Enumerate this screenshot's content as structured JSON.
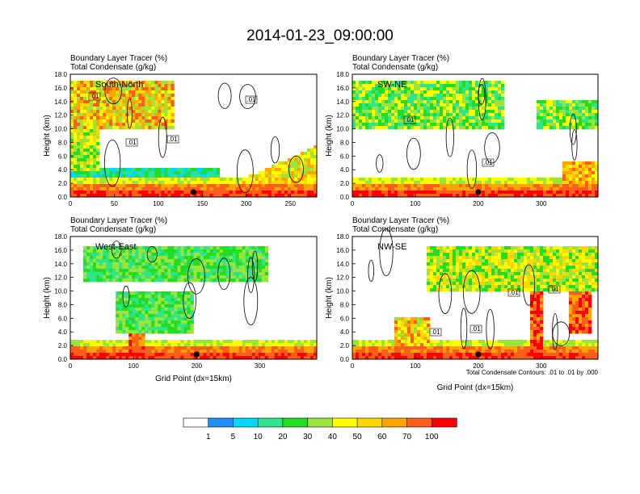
{
  "figure_title": "2014-01-23_09:00:00",
  "colors": {
    "levels": [
      "#ffffff",
      "#1e90ff",
      "#00d8ff",
      "#2ee58c",
      "#22dd22",
      "#9be53a",
      "#ffff00",
      "#ffd700",
      "#ffa500",
      "#ff5e1a",
      "#ff0000"
    ],
    "contour": "#000000"
  },
  "colorbar": {
    "labels": [
      "1",
      "5",
      "10",
      "20",
      "30",
      "40",
      "50",
      "60",
      "70",
      "100"
    ]
  },
  "chart_data": [
    {
      "type": "heatmap",
      "panel_label": "South-North",
      "subtitle_line1": "Boundary Layer Tracer   (%)",
      "subtitle_line2": "Total Condensate   (g/kg)",
      "ylabel": "Height (km)",
      "xlabel": "",
      "xlim": [
        0,
        280
      ],
      "ylim": [
        0,
        18
      ],
      "x_ticks": [
        "0",
        "50",
        "100",
        "150",
        "200",
        "250"
      ],
      "y_ticks": [
        "0.0",
        "2.0",
        "4.0",
        "6.0",
        "8.0",
        "10.0",
        "12.0",
        "14.0",
        "16.0",
        "18.0"
      ],
      "contour_labels": [
        ".01",
        ".01",
        ".01",
        ".01"
      ],
      "marker_x": 140,
      "note": ""
    },
    {
      "type": "heatmap",
      "panel_label": "SW-NE",
      "subtitle_line1": "Boundary Layer Tracer   (%)",
      "subtitle_line2": "Total Condensate   (g/kg)",
      "ylabel": "Height (km)",
      "xlabel": "",
      "xlim": [
        0,
        390
      ],
      "ylim": [
        0,
        18
      ],
      "x_ticks": [
        "0",
        "100",
        "200",
        "300"
      ],
      "y_ticks": [
        "0.0",
        "2.0",
        "4.0",
        "6.0",
        "8.0",
        "10.0",
        "12.0",
        "14.0",
        "16.0",
        "18.0"
      ],
      "contour_labels": [
        ".01",
        ".01"
      ],
      "marker_x": 200,
      "note": ""
    },
    {
      "type": "heatmap",
      "panel_label": "West-East",
      "subtitle_line1": "Boundary Layer Tracer   (%)",
      "subtitle_line2": "Total Condensate   (g/kg)",
      "ylabel": "Height (km)",
      "xlabel": "Grid Point (dx=15km)",
      "xlim": [
        0,
        390
      ],
      "ylim": [
        0,
        18
      ],
      "x_ticks": [
        "0",
        "100",
        "200",
        "300"
      ],
      "y_ticks": [
        "0.0",
        "2.0",
        "4.0",
        "6.0",
        "8.0",
        "10.0",
        "12.0",
        "14.0",
        "16.0",
        "18.0"
      ],
      "contour_labels": [],
      "marker_x": 200,
      "note": ""
    },
    {
      "type": "heatmap",
      "panel_label": "NW-SE",
      "subtitle_line1": "Boundary Layer Tracer   (%)",
      "subtitle_line2": "Total Condensate   (g/kg)",
      "ylabel": "Height (km)",
      "xlabel": "Grid Point (dx=15km)",
      "xlim": [
        0,
        390
      ],
      "ylim": [
        0,
        18
      ],
      "x_ticks": [
        "0",
        "100",
        "200",
        "300"
      ],
      "y_ticks": [
        "0.0",
        "2.0",
        "4.0",
        "6.0",
        "8.0",
        "10.0",
        "12.0",
        "14.0",
        "16.0",
        "18.0"
      ],
      "contour_labels": [
        ".01",
        ".01",
        ".01",
        ".01"
      ],
      "marker_x": 200,
      "note": "Total Condensate Contours: .01 to .01 by .000"
    }
  ]
}
